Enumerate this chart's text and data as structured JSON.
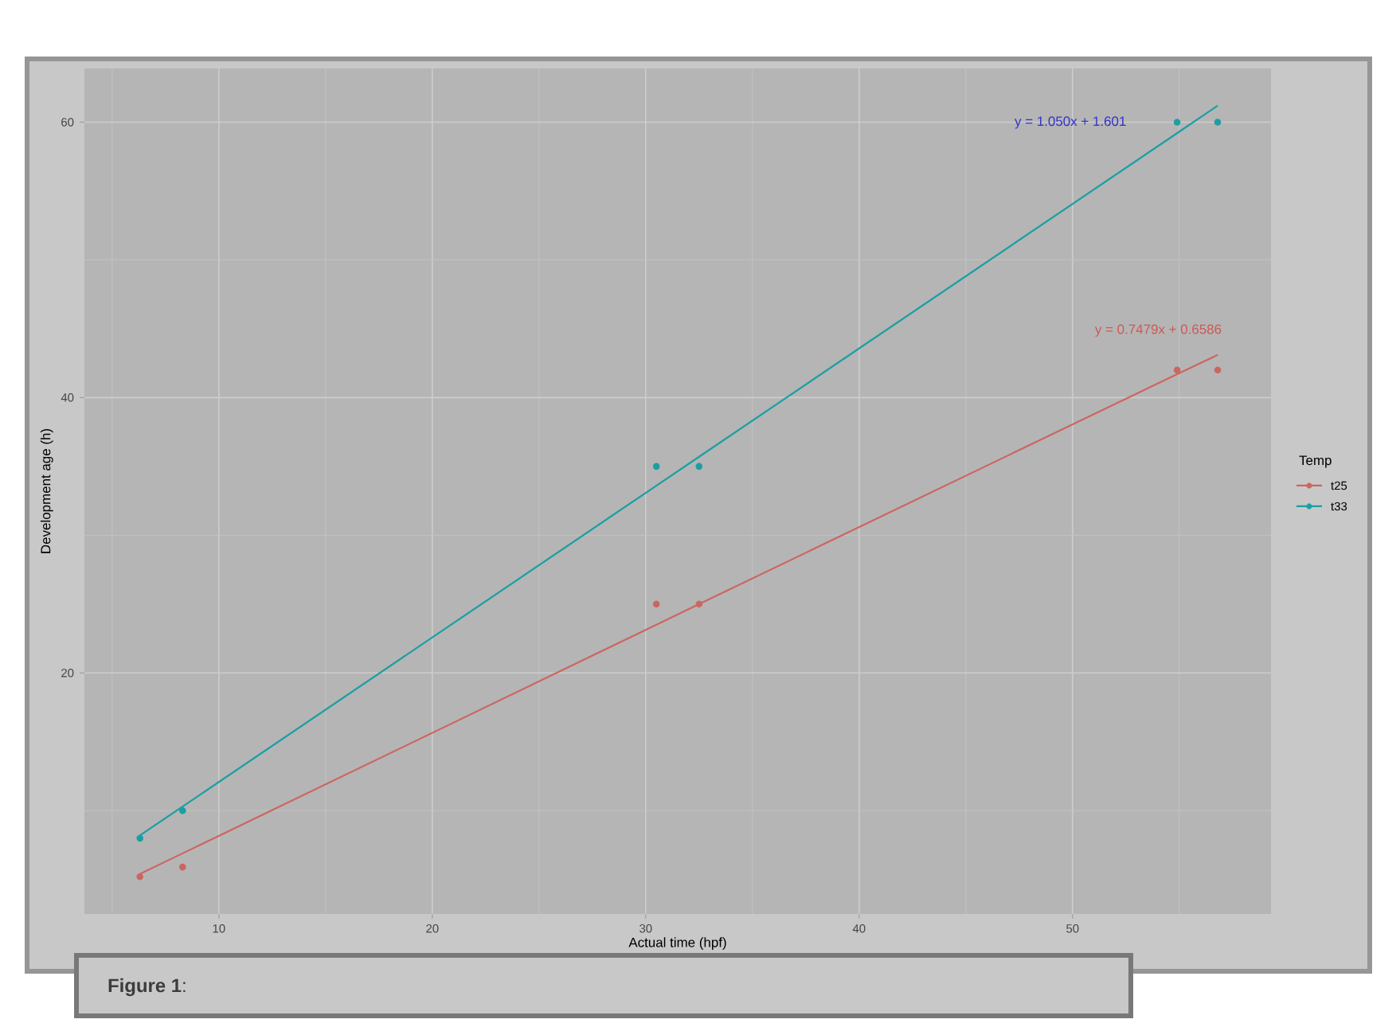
{
  "chart_data": {
    "type": "scatter",
    "xlabel": "Actual time (hpf)",
    "ylabel": "Development age (h)",
    "legend_title": "Temp",
    "x": [
      6.3,
      8.3,
      30.5,
      32.5,
      54.9,
      56.8
    ],
    "series": [
      {
        "name": "t25",
        "color": "#cc6660",
        "values": [
          5.2,
          5.9,
          25,
          25,
          42,
          42
        ]
      },
      {
        "name": "t33",
        "color": "#1a9fa4",
        "values": [
          8,
          10,
          35,
          35,
          60,
          60
        ]
      },
      {
        "type": "line",
        "color": "#cc6660",
        "marker": "none",
        "values": [
          5.4,
          6.9,
          23.5,
          25.0,
          41.7,
          43.1
        ]
      },
      {
        "type": "line",
        "color": "#1a9fa4",
        "marker": "none",
        "values": [
          8.2,
          10.3,
          33.6,
          35.7,
          59.2,
          61.2
        ]
      }
    ],
    "annotations": [
      "y = 1.050x + 1.601",
      "y = 0.7479x + 0.6586",
      "**Figure 1**:"
    ],
    "xlim": [
      3.7,
      59.3
    ],
    "ylim": [
      2.5,
      63.9
    ],
    "xticks": [
      10,
      20,
      30,
      40,
      50
    ],
    "yticks": [
      20,
      40,
      60
    ],
    "grid": true,
    "legend": "right",
    "marker": "circle",
    "line_style": "solid"
  }
}
